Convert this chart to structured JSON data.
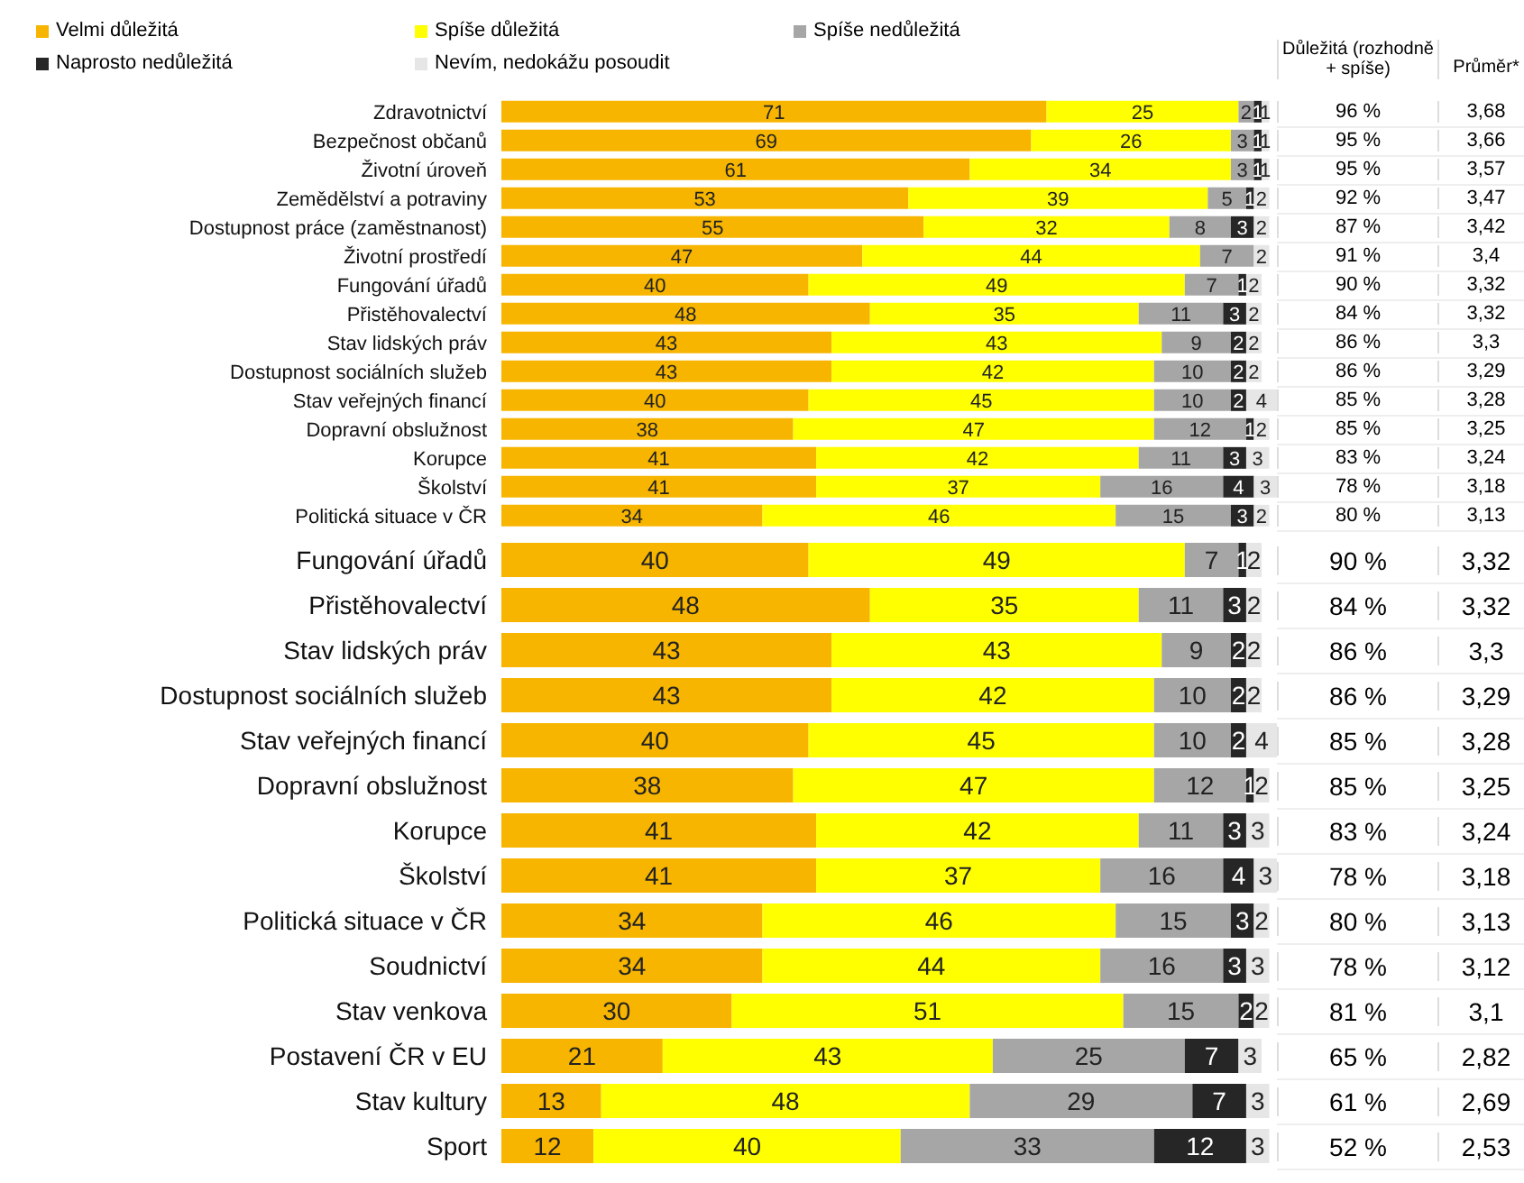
{
  "chart_data": [
    {
      "type": "bar",
      "orientation": "horizontal",
      "stacked": true,
      "legend": "top left",
      "tick_labels": "y",
      "xlim": [
        0,
        101
      ],
      "categories": [
        "Zdravotnictví",
        "Bezpečnost občanů",
        "Životní úroveň",
        "Zemědělství a potraviny",
        "Dostupnost práce (zaměstnanost)",
        "Životní prostředí",
        "Fungování úřadů",
        "Přistěhovalectví",
        "Stav lidských práv",
        "Dostupnost sociálních služeb",
        "Stav veřejných financí",
        "Dopravní obslužnost",
        "Korupce",
        "Školství",
        "Politická situace v ČR"
      ],
      "series": [
        {
          "name": "Velmi důležitá",
          "color": "#f7b500",
          "values": [
            71,
            69,
            61,
            53,
            55,
            47,
            40,
            48,
            43,
            43,
            40,
            38,
            41,
            41,
            34
          ],
          "value_labels": [
            "71",
            "69",
            "61",
            "53",
            "55",
            "47",
            "40",
            "48",
            "43",
            "43",
            "40",
            "38",
            "41",
            "41",
            "34"
          ]
        },
        {
          "name": "Spíše důležitá",
          "color": "#ffff00",
          "values": [
            25,
            26,
            34,
            39,
            32,
            44,
            49,
            35,
            43,
            42,
            45,
            47,
            42,
            37,
            46
          ],
          "value_labels": [
            "25",
            "26",
            "34",
            "39",
            "32",
            "44",
            "49",
            "35",
            "43",
            "42",
            "45",
            "47",
            "42",
            "37",
            "46"
          ]
        },
        {
          "name": "Spíše nedůležitá",
          "color": "#a6a6a6",
          "values": [
            2,
            3,
            3,
            5,
            8,
            7,
            7,
            11,
            9,
            10,
            10,
            12,
            11,
            16,
            15
          ],
          "value_labels": [
            "2",
            "3",
            "3",
            "5",
            "8",
            "7",
            "7",
            "11",
            "9",
            "10",
            "10",
            "12",
            "11",
            "16",
            "15"
          ]
        },
        {
          "name": "Naprosto nedůležitá",
          "color": "#262626",
          "values": [
            1,
            1,
            1,
            1,
            3,
            0,
            1,
            3,
            2,
            2,
            2,
            1,
            3,
            4,
            3
          ],
          "value_labels": [
            "1",
            "1",
            "1",
            "1",
            "3",
            null,
            "1",
            "3",
            "2",
            "2",
            "2",
            "1",
            "3",
            "4",
            "3"
          ]
        },
        {
          "name": "Nevím, nedokážu posoudit",
          "color": "#e6e6e6",
          "values": [
            1,
            1,
            1,
            2,
            2,
            2,
            2,
            2,
            2,
            2,
            4,
            2,
            3,
            3,
            2
          ],
          "value_labels": [
            "1",
            "1",
            "1",
            "2",
            "2",
            "2",
            "2",
            "2",
            "2",
            "2",
            "4",
            "2",
            "3",
            "3",
            "2"
          ]
        }
      ],
      "annotations": [
        "Důležitá (rozhodně + spíše)",
        "Průměr*",
        "96 %",
        "3,68",
        "95 %",
        "3,66",
        "95 %",
        "3,57",
        "92 %",
        "3,47",
        "87 %",
        "3,42",
        "91 %",
        "3,4",
        "90 %",
        "3,32",
        "84 %",
        "3,32",
        "86 %",
        "3,3",
        "86 %",
        "3,29",
        "85 %",
        "3,28",
        "85 %",
        "3,25",
        "83 %",
        "3,24",
        "78 %",
        "3,18",
        "80 %",
        "3,13"
      ]
    },
    {
      "type": "bar",
      "orientation": "horizontal",
      "stacked": true,
      "tick_labels": "y",
      "data_labels": true,
      "xlim": [
        0,
        101
      ],
      "categories": [
        "Fungování úřadů",
        "Přistěhovalectví",
        "Stav lidských práv",
        "Dostupnost sociálních služeb",
        "Stav veřejných financí",
        "Dopravní obslužnost",
        "Korupce",
        "Školství",
        "Politická situace v ČR",
        "Soudnictví",
        "Stav venkova",
        "Postavení ČR v EU",
        "Stav kultury",
        "Sport"
      ],
      "series": [
        {
          "color": "#f7b500",
          "values": [
            40,
            48,
            43,
            43,
            40,
            38,
            41,
            41,
            34,
            34,
            30,
            21,
            13,
            12
          ]
        },
        {
          "color": "#ffff00",
          "values": [
            49,
            35,
            43,
            42,
            45,
            47,
            42,
            37,
            46,
            44,
            51,
            43,
            48,
            40
          ]
        },
        {
          "color": "#a6a6a6",
          "values": [
            7,
            11,
            9,
            10,
            10,
            12,
            11,
            16,
            15,
            16,
            15,
            25,
            29,
            33
          ]
        },
        {
          "color": "#262626",
          "values": [
            1,
            3,
            2,
            2,
            2,
            1,
            3,
            4,
            3,
            3,
            2,
            7,
            7,
            12
          ]
        },
        {
          "color": "#e6e6e6",
          "values": [
            2,
            2,
            2,
            2,
            4,
            2,
            3,
            3,
            2,
            3,
            2,
            3,
            3,
            3
          ]
        }
      ],
      "annotations": [
        "90 %",
        "3,32",
        "84 %",
        "3,32",
        "86 %",
        "3,3",
        "86 %",
        "3,29",
        "85 %",
        "3,28",
        "85 %",
        "3,25",
        "83 %",
        "3,24",
        "78 %",
        "3,18",
        "80 %",
        "3,13",
        "78 %",
        "3,12",
        "81 %",
        "3,1",
        "65 %",
        "2,82",
        "61 %",
        "2,69",
        "52 %",
        "2,53"
      ]
    }
  ]
}
